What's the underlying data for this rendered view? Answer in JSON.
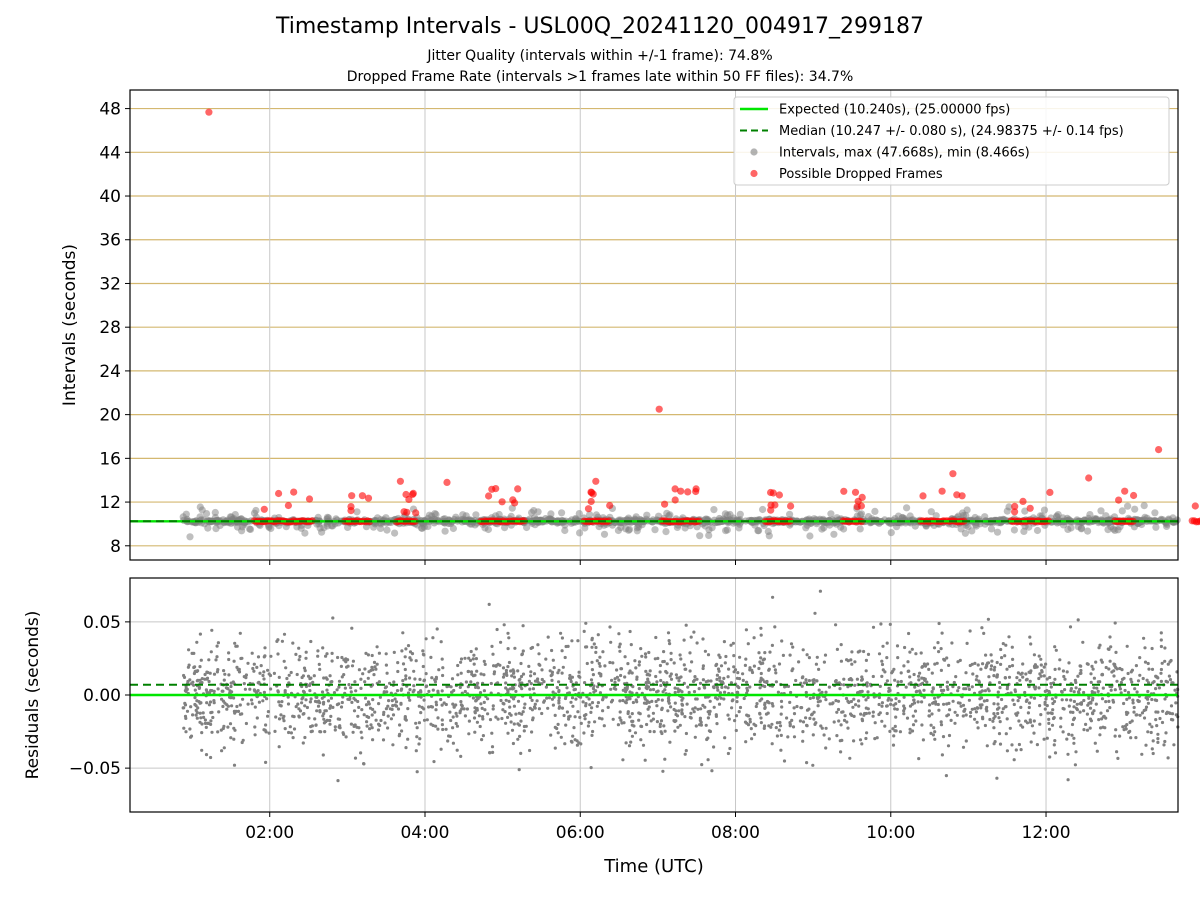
{
  "title": "Timestamp Intervals - USL00Q_20241120_004917_299187",
  "subtitle_jitter": "Jitter Quality (intervals within +/-1 frame): 74.8%",
  "subtitle_dropped": "Dropped Frame Rate (intervals >1 frames late within 50 FF files): 34.7%",
  "colors": {
    "expected": "#00e600",
    "median": "#008000",
    "intervals": "#808080",
    "dropped": "#ff0000",
    "hgrid": "#d4b870",
    "vgrid": "#c8c8c8"
  },
  "chart_data": [
    {
      "type": "scatter",
      "panel": "intervals",
      "ylabel": "Intervals (seconds)",
      "xlabel": "",
      "x_range": [
        "00:12",
        "13:42"
      ],
      "ylim": [
        6.7,
        49.7
      ],
      "y_ticks": [
        8,
        12,
        16,
        20,
        24,
        28,
        32,
        36,
        40,
        44,
        48
      ],
      "x_ticks": [
        "02:00",
        "04:00",
        "06:00",
        "08:00",
        "10:00",
        "12:00"
      ],
      "grid": true,
      "legend_position": "top-right",
      "legend": [
        {
          "label": "Expected (10.240s), (25.00000 fps)",
          "style": "solid-line",
          "color": "#00e600"
        },
        {
          "label": "Median (10.247 +/- 0.080 s), (24.98375 +/- 0.14 fps)",
          "style": "dashed-line",
          "color": "#008000"
        },
        {
          "label": "Intervals, max (47.668s), min (8.466s)",
          "style": "marker",
          "color": "#808080"
        },
        {
          "label": "Possible Dropped Frames",
          "style": "marker",
          "color": "#ff0000"
        }
      ],
      "expected_interval": 10.24,
      "median_interval": 10.247,
      "data_start": "00:53",
      "data_end": "13:42",
      "interval_max": 47.668,
      "interval_min": 8.466,
      "notable_dropped_points": [
        {
          "x": "01:13",
          "y": 47.668
        },
        {
          "x": "07:01",
          "y": 20.5
        },
        {
          "x": "13:27",
          "y": 16.8
        },
        {
          "x": "10:48",
          "y": 14.6
        },
        {
          "x": "12:33",
          "y": 14.2
        },
        {
          "x": "06:12",
          "y": 13.9
        },
        {
          "x": "03:41",
          "y": 13.9
        },
        {
          "x": "04:17",
          "y": 13.8
        }
      ]
    },
    {
      "type": "scatter",
      "panel": "residuals",
      "ylabel": "Residuals (seconds)",
      "xlabel": "Time (UTC)",
      "x_range": [
        "00:12",
        "13:42"
      ],
      "ylim": [
        -0.08,
        0.08
      ],
      "y_ticks": [
        0.05,
        0.0,
        -0.05
      ],
      "y_tick_labels": [
        "0.05",
        "0.00",
        "−0.05"
      ],
      "x_ticks": [
        "02:00",
        "04:00",
        "06:00",
        "08:00",
        "10:00",
        "12:00"
      ],
      "grid": true,
      "zero_line": 0.0,
      "median_residual": 0.007,
      "residual_spread": 0.025
    }
  ]
}
